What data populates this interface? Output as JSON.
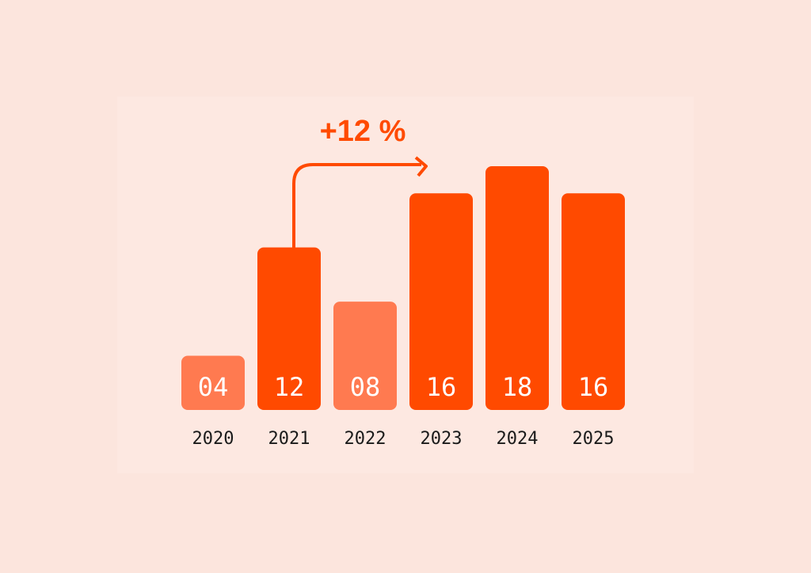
{
  "chart_data": {
    "type": "bar",
    "annotation": "+12 %",
    "categories": [
      "2020",
      "2021",
      "2022",
      "2023",
      "2024",
      "2025"
    ],
    "values": [
      4,
      12,
      8,
      16,
      18,
      16
    ],
    "value_labels": [
      "04",
      "12",
      "08",
      "16",
      "18",
      "16"
    ],
    "colors": [
      "#ff7a50",
      "#ff4a00",
      "#ff7a50",
      "#ff4a00",
      "#ff4a00",
      "#ff4a00"
    ]
  }
}
